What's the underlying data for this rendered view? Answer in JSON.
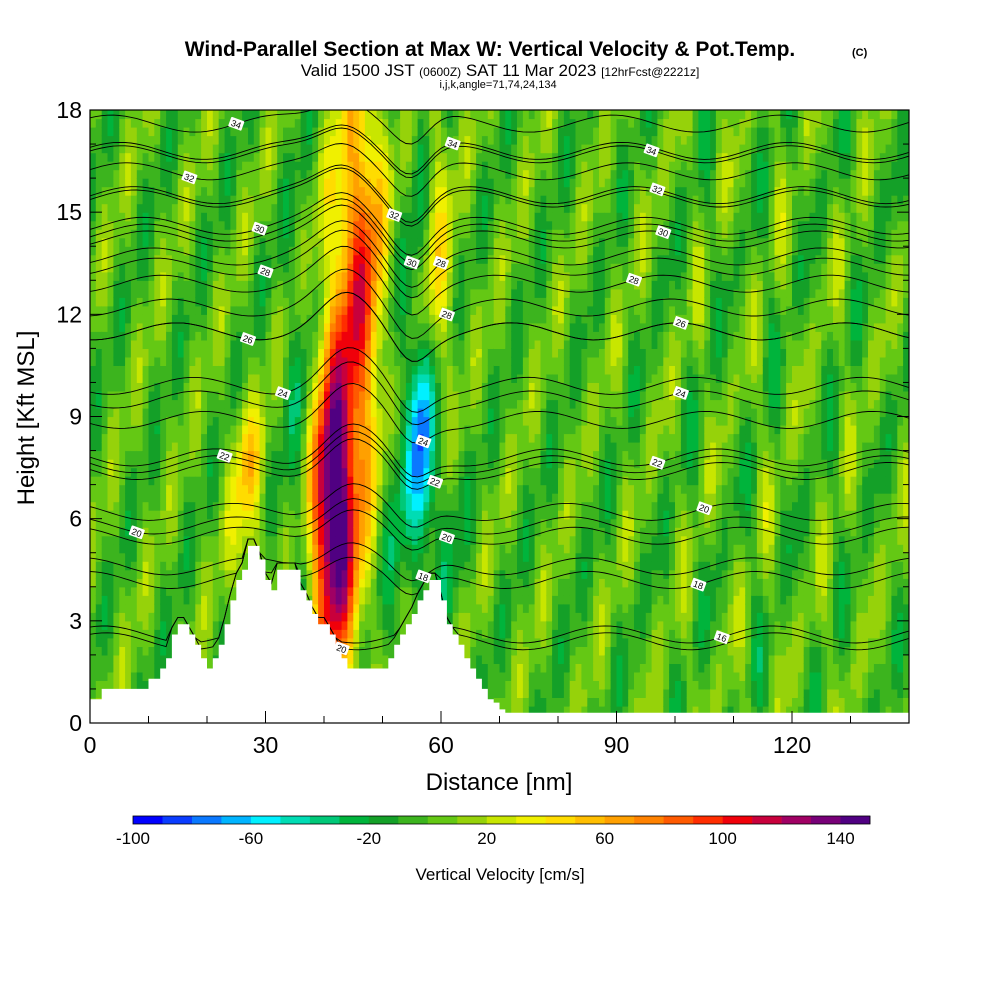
{
  "chart_data": {
    "type": "heatmap",
    "title": "Wind-Parallel Section at Max W: Vertical Velocity & Pot.Temp.",
    "title_mark": "(C)",
    "subtitle": {
      "valid_prefix": "Valid 1500 JST",
      "utc": "(0600Z)",
      "date": "SAT 11 Mar 2023",
      "forecast": "[12hrFcst@2221z]"
    },
    "section_info": "i,j,k,angle=71,74,24,134",
    "xlabel": "Distance [nm]",
    "ylabel": "Height [Kft MSL]",
    "xlim": [
      0,
      140
    ],
    "ylim": [
      0,
      18
    ],
    "x_ticks": [
      "0",
      "30",
      "60",
      "90",
      "120"
    ],
    "x_tick_values": [
      0,
      30,
      60,
      90,
      120
    ],
    "y_ticks": [
      "0",
      "3",
      "6",
      "9",
      "12",
      "15",
      "18"
    ],
    "y_tick_values": [
      0,
      3,
      6,
      9,
      12,
      15,
      18
    ],
    "colorbar": {
      "label": "Vertical Velocity [cm/s]",
      "min": -100,
      "max": 150,
      "step": 10,
      "tick_labels": [
        "-100",
        "-60",
        "-20",
        "20",
        "60",
        "100",
        "140"
      ],
      "tick_values": [
        -100,
        -60,
        -20,
        20,
        60,
        100,
        140
      ],
      "colors": [
        "#0000ff",
        "#0a3cff",
        "#0a78ff",
        "#00b4ff",
        "#00f0ff",
        "#00dcb4",
        "#00c878",
        "#00b43c",
        "#14a028",
        "#3cb41e",
        "#64c814",
        "#96d20a",
        "#c8e600",
        "#f0f000",
        "#ffdc00",
        "#ffbe00",
        "#ffa000",
        "#ff8200",
        "#ff5a00",
        "#ff2d00",
        "#f0000a",
        "#c8003c",
        "#a00064",
        "#780078",
        "#500082"
      ]
    },
    "terrain_kft": {
      "x": [
        0,
        1,
        2,
        8,
        10,
        12,
        13,
        14,
        15,
        16,
        17,
        18,
        19,
        20,
        21,
        22,
        23,
        24,
        25,
        26,
        27,
        28,
        29,
        30,
        31,
        32,
        33,
        34,
        35,
        36,
        37,
        38,
        39,
        40,
        41,
        42,
        43,
        44,
        45,
        46,
        47,
        48,
        49,
        50,
        51,
        52,
        53,
        54,
        55,
        56,
        57,
        58,
        59,
        60,
        61,
        62,
        63,
        64,
        65,
        66,
        67,
        68,
        69,
        70,
        71,
        72
      ],
      "h": [
        0.7,
        0.7,
        1.0,
        1.0,
        1.3,
        1.6,
        1.9,
        2.6,
        2.9,
        2.9,
        2.6,
        2.3,
        1.9,
        1.6,
        1.9,
        2.3,
        2.9,
        3.6,
        4.2,
        4.5,
        5.2,
        5.2,
        4.8,
        4.2,
        3.9,
        4.5,
        4.5,
        4.5,
        4.5,
        3.9,
        3.6,
        3.2,
        2.9,
        2.9,
        2.6,
        2.3,
        1.9,
        1.6,
        1.6,
        1.6,
        1.6,
        1.6,
        1.6,
        1.6,
        1.9,
        2.3,
        2.6,
        2.9,
        3.2,
        3.6,
        3.9,
        4.2,
        4.2,
        3.6,
        2.9,
        2.6,
        2.3,
        1.9,
        1.6,
        1.3,
        1.0,
        0.7,
        0.6,
        0.4,
        0.3,
        0.3
      ]
    },
    "vertical_velocity_features": [
      {
        "x": 41.5,
        "y": 6.0,
        "sx": 2.6,
        "sy": 3.2,
        "w": 150
      },
      {
        "x": 45.5,
        "y": 11.5,
        "sx": 3.5,
        "sy": 5.0,
        "w": 60
      },
      {
        "x": 47.0,
        "y": 14.0,
        "sx": 3.0,
        "sy": 3.5,
        "w": 40
      },
      {
        "x": 58.5,
        "y": 12.0,
        "sx": 2.2,
        "sy": 4.5,
        "w": 45
      },
      {
        "x": 57.0,
        "y": 8.5,
        "sx": 1.6,
        "sy": 2.6,
        "w": -95
      },
      {
        "x": 56.5,
        "y": 16.0,
        "sx": 1.2,
        "sy": 2.5,
        "w": -30
      },
      {
        "x": 26.5,
        "y": 6.2,
        "sx": 2.0,
        "sy": 1.8,
        "w": 30
      },
      {
        "x": 27.5,
        "y": 7.8,
        "sx": 1.8,
        "sy": 1.2,
        "w": 25
      },
      {
        "x": 52.0,
        "y": 8.0,
        "sx": 2.2,
        "sy": 6.0,
        "w": -25
      },
      {
        "x": 36.0,
        "y": 8.0,
        "sx": 2.0,
        "sy": 5.0,
        "w": -20
      },
      {
        "x": 61.0,
        "y": 6.0,
        "sx": 2.0,
        "sy": 2.5,
        "w": -20
      }
    ],
    "potential_temperature_contours": [
      {
        "label": "16",
        "base_kft": 2.6,
        "label_x": 108
      },
      {
        "label": "18",
        "base_kft": 4.2,
        "label_x": 104
      },
      {
        "label": "18",
        "base_kft": 4.6,
        "label_x": 57
      },
      {
        "label": "20",
        "base_kft": 5.8,
        "label_x": 8
      },
      {
        "label": "20",
        "base_kft": 2.4,
        "label_x": 43
      },
      {
        "label": "20",
        "base_kft": 5.5,
        "label_x": 61
      },
      {
        "label": "20",
        "base_kft": 6.2,
        "label_x": 105
      },
      {
        "label": "22",
        "base_kft": 7.6,
        "label_x": 23
      },
      {
        "label": "22",
        "base_kft": 7.4,
        "label_x": 59
      },
      {
        "label": "22",
        "base_kft": 7.8,
        "label_x": 97
      },
      {
        "label": "24",
        "base_kft": 9.9,
        "label_x": 33
      },
      {
        "label": "24",
        "base_kft": 8.9,
        "label_x": 57
      },
      {
        "label": "24",
        "base_kft": 9.5,
        "label_x": 101
      },
      {
        "label": "26",
        "base_kft": 11.5,
        "label_x": 27
      },
      {
        "label": "26",
        "base_kft": 11.5,
        "label_x": 101
      },
      {
        "label": "28",
        "base_kft": 13.4,
        "label_x": 30
      },
      {
        "label": "28",
        "base_kft": 13.7,
        "label_x": 60
      },
      {
        "label": "28",
        "base_kft": 12.2,
        "label_x": 61
      },
      {
        "label": "28",
        "base_kft": 12.9,
        "label_x": 93
      },
      {
        "label": "30",
        "base_kft": 14.6,
        "label_x": 29
      },
      {
        "label": "30",
        "base_kft": 14.4,
        "label_x": 55
      },
      {
        "label": "30",
        "base_kft": 14.2,
        "label_x": 98
      },
      {
        "label": "32",
        "base_kft": 16.2,
        "label_x": 17
      },
      {
        "label": "32",
        "base_kft": 15.4,
        "label_x": 52
      },
      {
        "label": "32",
        "base_kft": 15.5,
        "label_x": 97
      },
      {
        "label": "34",
        "base_kft": 17.6,
        "label_x": 25
      },
      {
        "label": "34",
        "base_kft": 16.8,
        "label_x": 62
      },
      {
        "label": "34",
        "base_kft": 16.7,
        "label_x": 96
      }
    ]
  }
}
